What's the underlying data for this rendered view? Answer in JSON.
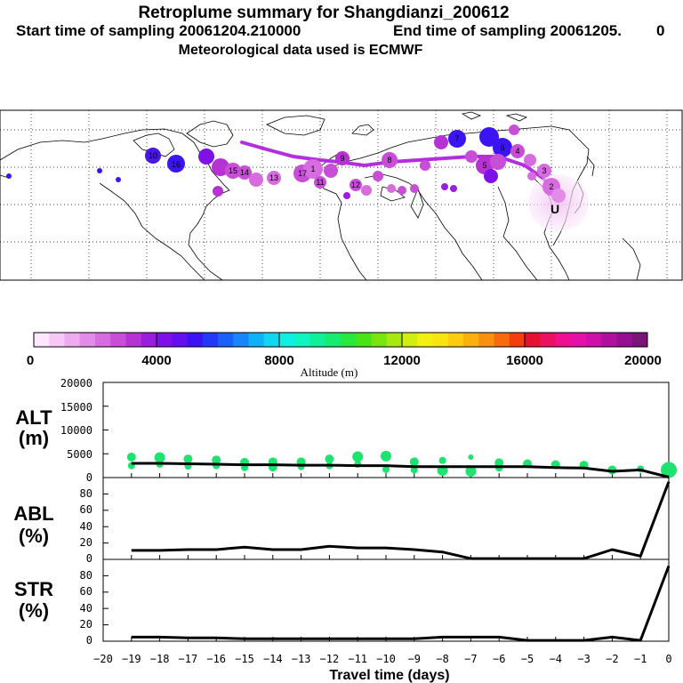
{
  "header": {
    "title": "Retroplume summary for Shangdianzi_200612",
    "start_label": "Start time of sampling 20061204.210000",
    "end_label": "End time of sampling 20061205.",
    "end_value": "0",
    "met_label": "Meteorological data used is ECMWF"
  },
  "colorbar": {
    "ticks": [
      "0",
      "4000",
      "8000",
      "12000",
      "16000",
      "20000"
    ],
    "label": "Altitude (m)",
    "colors": [
      "#ffe6ff",
      "#f7c8f7",
      "#efaaf0",
      "#e38be8",
      "#d66ce0",
      "#c84ed8",
      "#b632d2",
      "#9a1ee0",
      "#7e12e6",
      "#6410ee",
      "#3c14f4",
      "#2438f8",
      "#1c60fa",
      "#1886fa",
      "#10b2f6",
      "#10d6ef",
      "#10f0e0",
      "#10f4c0",
      "#10f09a",
      "#18ec70",
      "#28e840",
      "#48e418",
      "#78e410",
      "#a8e810",
      "#d2ee10",
      "#f2f010",
      "#f8e410",
      "#fccc10",
      "#fcb010",
      "#fa9010",
      "#f86a10",
      "#f43e10",
      "#e81030",
      "#ec1060",
      "#ee1090",
      "#e410a8",
      "#cc10a8",
      "#b0109e",
      "#941090",
      "#7a1478"
    ]
  },
  "map": {
    "station_marker": "U",
    "plume_labels": [
      "10",
      "16",
      "15",
      "14",
      "13",
      "17",
      "1",
      "12",
      "11",
      "9",
      "8",
      "7",
      "6",
      "5",
      "4",
      "3",
      "2"
    ]
  },
  "chart_data": [
    {
      "type": "line",
      "name": "ALT",
      "ylabel": "ALT (m)",
      "ylabel_lines": [
        "ALT",
        "(m)"
      ],
      "ylim": [
        0,
        20000
      ],
      "yticks": [
        "20000",
        "15000",
        "10000",
        "5000",
        "0"
      ],
      "xlim": [
        -20,
        0
      ],
      "x": [
        -19,
        -18,
        -17,
        -16,
        -15,
        -14,
        -13,
        -12,
        -11,
        -10,
        -9,
        -8,
        -7,
        -6,
        -5,
        -4,
        -3,
        -2,
        -1,
        0
      ],
      "values": [
        3000,
        3000,
        2900,
        2800,
        2700,
        2700,
        2600,
        2600,
        2500,
        2500,
        2300,
        2300,
        2300,
        2300,
        2300,
        2100,
        2000,
        1300,
        1600,
        100
      ],
      "scatter_points": [
        {
          "x": -19,
          "y": 4300,
          "s": 5
        },
        {
          "x": -19,
          "y": 2500,
          "s": 4
        },
        {
          "x": -18,
          "y": 4200,
          "s": 6
        },
        {
          "x": -18,
          "y": 2800,
          "s": 4
        },
        {
          "x": -17,
          "y": 3900,
          "s": 5
        },
        {
          "x": -17,
          "y": 2400,
          "s": 4
        },
        {
          "x": -16,
          "y": 3700,
          "s": 5
        },
        {
          "x": -16,
          "y": 2500,
          "s": 4
        },
        {
          "x": -15,
          "y": 3200,
          "s": 5
        },
        {
          "x": -15,
          "y": 2100,
          "s": 4
        },
        {
          "x": -14,
          "y": 3300,
          "s": 5
        },
        {
          "x": -14,
          "y": 2200,
          "s": 5
        },
        {
          "x": -13,
          "y": 3300,
          "s": 5
        },
        {
          "x": -13,
          "y": 2300,
          "s": 4
        },
        {
          "x": -12,
          "y": 3900,
          "s": 5
        },
        {
          "x": -12,
          "y": 2500,
          "s": 4
        },
        {
          "x": -11,
          "y": 4400,
          "s": 6
        },
        {
          "x": -11,
          "y": 2800,
          "s": 4
        },
        {
          "x": -10,
          "y": 4500,
          "s": 6
        },
        {
          "x": -10,
          "y": 1700,
          "s": 4
        },
        {
          "x": -9,
          "y": 3300,
          "s": 5
        },
        {
          "x": -9,
          "y": 1600,
          "s": 4
        },
        {
          "x": -8,
          "y": 3600,
          "s": 4
        },
        {
          "x": -8,
          "y": 1500,
          "s": 6
        },
        {
          "x": -7,
          "y": 4300,
          "s": 3
        },
        {
          "x": -7,
          "y": 1300,
          "s": 6
        },
        {
          "x": -6,
          "y": 3100,
          "s": 5
        },
        {
          "x": -6,
          "y": 2000,
          "s": 4
        },
        {
          "x": -5,
          "y": 2900,
          "s": 5
        },
        {
          "x": -4,
          "y": 2700,
          "s": 5
        },
        {
          "x": -3,
          "y": 2600,
          "s": 5
        },
        {
          "x": -2,
          "y": 1600,
          "s": 5
        },
        {
          "x": -1,
          "y": 1800,
          "s": 4
        },
        {
          "x": 0,
          "y": 1600,
          "s": 9
        }
      ]
    },
    {
      "type": "line",
      "name": "ABL",
      "ylabel": "ABL (%)",
      "ylabel_lines": [
        "ABL",
        "(%)"
      ],
      "ylim": [
        0,
        100
      ],
      "yticks": [
        "80",
        "60",
        "40",
        "20",
        "0"
      ],
      "xlim": [
        -20,
        0
      ],
      "x": [
        -19,
        -18,
        -17,
        -16,
        -15,
        -14,
        -13,
        -12,
        -11,
        -10,
        -9,
        -8,
        -7,
        -6,
        -5,
        -4,
        -3,
        -2,
        -1,
        0
      ],
      "values": [
        11,
        11,
        12,
        12,
        15,
        12,
        12,
        16,
        14,
        14,
        12,
        9,
        1,
        1,
        1,
        1,
        1,
        12,
        4,
        95
      ]
    },
    {
      "type": "line",
      "name": "STR",
      "ylabel": "STR (%)",
      "ylabel_lines": [
        "STR",
        "(%)"
      ],
      "ylim": [
        0,
        100
      ],
      "yticks": [
        "80",
        "60",
        "40",
        "20",
        "0"
      ],
      "xlim": [
        -20,
        0
      ],
      "xticks": [
        "−20",
        "−19",
        "−18",
        "−17",
        "−16",
        "−15",
        "−14",
        "−13",
        "−12",
        "−11",
        "−10",
        "−9",
        "−8",
        "−7",
        "−6",
        "−5",
        "−4",
        "−3",
        "−2",
        "−1",
        "0"
      ],
      "xlabel": "Travel time (days)",
      "x": [
        -19,
        -18,
        -17,
        -16,
        -15,
        -14,
        -13,
        -12,
        -11,
        -10,
        -9,
        -8,
        -7,
        -6,
        -5,
        -4,
        -3,
        -2,
        -1,
        0
      ],
      "values": [
        5,
        5,
        4,
        4,
        3,
        3,
        3,
        3,
        3,
        3,
        3,
        5,
        5,
        5,
        1,
        1,
        1,
        5,
        1,
        92
      ]
    }
  ]
}
